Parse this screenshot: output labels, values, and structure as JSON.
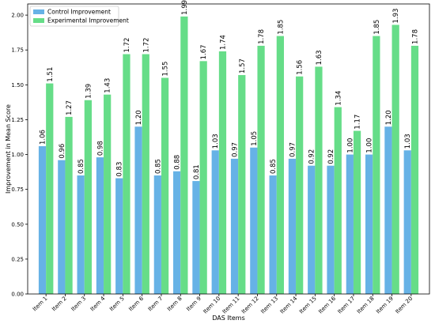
{
  "chart_data": {
    "type": "bar",
    "title": "",
    "xlabel": "DAS Items",
    "ylabel": "Improvement in Mean Score",
    "ylim": [
      0,
      2.08
    ],
    "yticks": [
      "0.00",
      "0.25",
      "0.50",
      "0.75",
      "1.00",
      "1.25",
      "1.50",
      "1.75",
      "2.00"
    ],
    "ytick_values": [
      0,
      0.25,
      0.5,
      0.75,
      1.0,
      1.25,
      1.5,
      1.75,
      2.0
    ],
    "grid": false,
    "legend_position": "top-left",
    "categories": [
      "Item 1",
      "Item 2",
      "Item 3",
      "Item 4",
      "Item 5",
      "Item 6",
      "Item 7",
      "Item 8",
      "Item 9",
      "Item 10",
      "Item 11",
      "Item 12",
      "Item 13",
      "Item 14",
      "Item 15",
      "Item 16",
      "Item 17",
      "Item 18",
      "Item 19",
      "Item 20"
    ],
    "series": [
      {
        "name": "Control Improvement",
        "color": "#66b2e6",
        "values": [
          1.06,
          0.96,
          0.85,
          0.98,
          0.83,
          1.2,
          0.85,
          0.88,
          0.81,
          1.03,
          0.97,
          1.05,
          0.85,
          0.97,
          0.92,
          0.92,
          1.0,
          1.0,
          1.2,
          1.03
        ],
        "labels": [
          "1.06",
          "0.96",
          "0.85",
          "0.98",
          "0.83",
          "1.20",
          "0.85",
          "0.88",
          "0.81",
          "1.03",
          "0.97",
          "1.05",
          "0.85",
          "0.97",
          "0.92",
          "0.92",
          "1.00",
          "1.00",
          "1.20",
          "1.03"
        ]
      },
      {
        "name": "Experimental Improvement",
        "color": "#66dd88",
        "values": [
          1.51,
          1.27,
          1.39,
          1.43,
          1.72,
          1.72,
          1.55,
          1.99,
          1.67,
          1.74,
          1.57,
          1.78,
          1.85,
          1.56,
          1.63,
          1.34,
          1.17,
          1.85,
          1.93,
          1.78
        ],
        "labels": [
          "1.51",
          "1.27",
          "1.39",
          "1.43",
          "1.72",
          "1.72",
          "1.55",
          "1.99",
          "1.67",
          "1.74",
          "1.57",
          "1.78",
          "1.85",
          "1.56",
          "1.63",
          "1.34",
          "1.17",
          "1.85",
          "1.93",
          "1.78"
        ]
      }
    ]
  }
}
